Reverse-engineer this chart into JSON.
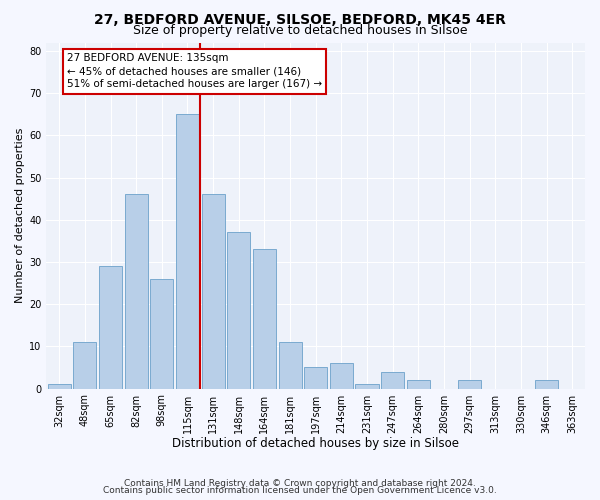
{
  "title1": "27, BEDFORD AVENUE, SILSOE, BEDFORD, MK45 4ER",
  "title2": "Size of property relative to detached houses in Silsoe",
  "xlabel": "Distribution of detached houses by size in Silsoe",
  "ylabel": "Number of detached properties",
  "categories": [
    "32sqm",
    "48sqm",
    "65sqm",
    "82sqm",
    "98sqm",
    "115sqm",
    "131sqm",
    "148sqm",
    "164sqm",
    "181sqm",
    "197sqm",
    "214sqm",
    "231sqm",
    "247sqm",
    "264sqm",
    "280sqm",
    "297sqm",
    "313sqm",
    "330sqm",
    "346sqm",
    "363sqm"
  ],
  "values": [
    1,
    11,
    29,
    46,
    26,
    65,
    46,
    37,
    33,
    11,
    5,
    6,
    1,
    4,
    2,
    0,
    2,
    0,
    0,
    2,
    0
  ],
  "bar_color": "#b8cfe8",
  "bar_edge_color": "#7aaad0",
  "vline_index": 6,
  "vline_color": "#cc0000",
  "annotation_title": "27 BEDFORD AVENUE: 135sqm",
  "annotation_line1": "← 45% of detached houses are smaller (146)",
  "annotation_line2": "51% of semi-detached houses are larger (167) →",
  "annotation_box_color": "#cc0000",
  "ylim": [
    0,
    82
  ],
  "yticks": [
    0,
    10,
    20,
    30,
    40,
    50,
    60,
    70,
    80
  ],
  "footnote1": "Contains HM Land Registry data © Crown copyright and database right 2024.",
  "footnote2": "Contains public sector information licensed under the Open Government Licence v3.0.",
  "bg_color": "#eef2fa",
  "grid_color": "#ffffff",
  "fig_bg_color": "#f5f7ff",
  "title1_fontsize": 10,
  "title2_fontsize": 9,
  "xlabel_fontsize": 8.5,
  "ylabel_fontsize": 8,
  "tick_fontsize": 7,
  "footnote_fontsize": 6.5,
  "ann_fontsize": 7.5
}
